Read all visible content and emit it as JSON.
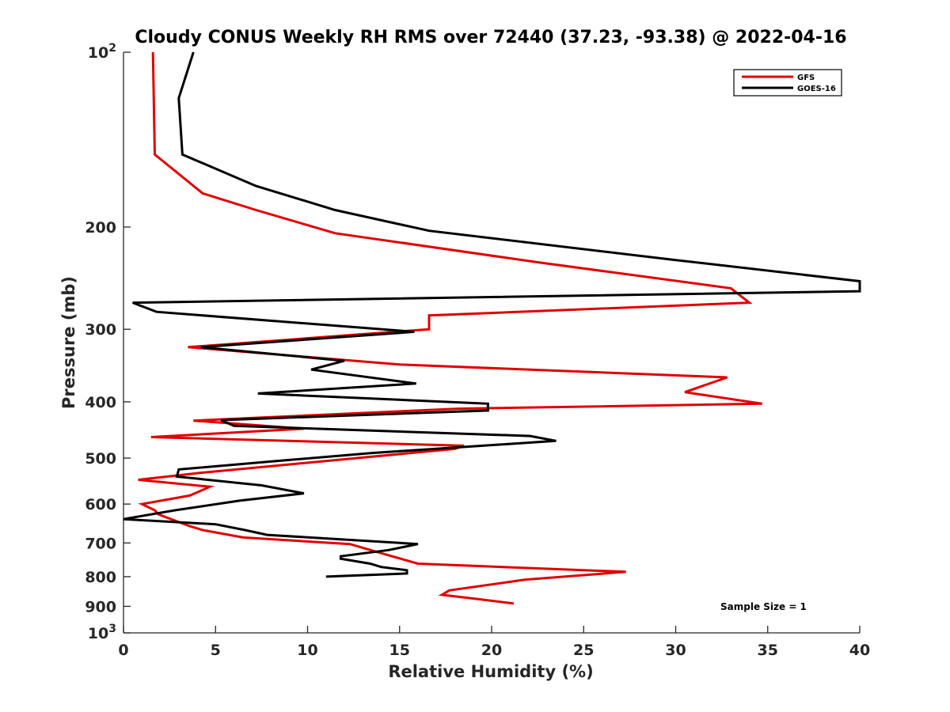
{
  "chart_data": {
    "type": "line",
    "title": "Cloudy CONUS Weekly RH RMS over 72440 (37.23, -93.38) @ 2022-04-16",
    "xlabel": "Relative Humidity (%)",
    "ylabel": "Pressure (mb)",
    "xlim": [
      0,
      40
    ],
    "ylim": [
      100,
      1000
    ],
    "y_scale": "log",
    "y_reversed": true,
    "x_ticks": [
      0,
      5,
      10,
      15,
      20,
      25,
      30,
      35,
      40
    ],
    "y_ticks": [
      {
        "value": 100,
        "label": "10",
        "sup": "2"
      },
      {
        "value": 200,
        "label": "200"
      },
      {
        "value": 300,
        "label": "300"
      },
      {
        "value": 400,
        "label": "400"
      },
      {
        "value": 500,
        "label": "500"
      },
      {
        "value": 600,
        "label": "600"
      },
      {
        "value": 700,
        "label": "700"
      },
      {
        "value": 800,
        "label": "800"
      },
      {
        "value": 900,
        "label": "900"
      },
      {
        "value": 1000,
        "label": "10",
        "sup": "3"
      }
    ],
    "grid": false,
    "legend_position": "top-right",
    "annotation": "Sample Size = 1",
    "series": [
      {
        "name": "GFS",
        "color": "#e00000",
        "points": [
          [
            1.6,
            100
          ],
          [
            1.7,
            150
          ],
          [
            4.3,
            175
          ],
          [
            7.2,
            187
          ],
          [
            11.5,
            205
          ],
          [
            22.5,
            230
          ],
          [
            33.0,
            255
          ],
          [
            34.0,
            270
          ],
          [
            16.6,
            284
          ],
          [
            16.6,
            300
          ],
          [
            3.5,
            322
          ],
          [
            15.0,
            345
          ],
          [
            32.8,
            363
          ],
          [
            30.5,
            385
          ],
          [
            34.7,
            403
          ],
          [
            18.2,
            411
          ],
          [
            3.8,
            431
          ],
          [
            9.8,
            445
          ],
          [
            1.5,
            460
          ],
          [
            18.5,
            476
          ],
          [
            18.0,
            482
          ],
          [
            4.2,
            530
          ],
          [
            0.8,
            545
          ],
          [
            4.7,
            560
          ],
          [
            3.6,
            580
          ],
          [
            1.0,
            600
          ],
          [
            1.7,
            615
          ],
          [
            1.9,
            625
          ],
          [
            3.6,
            655
          ],
          [
            4.3,
            665
          ],
          [
            6.5,
            685
          ],
          [
            12.3,
            703
          ],
          [
            14.2,
            732
          ],
          [
            16.0,
            760
          ],
          [
            27.3,
            785
          ],
          [
            21.8,
            810
          ],
          [
            17.7,
            845
          ],
          [
            17.3,
            860
          ],
          [
            19.3,
            875
          ],
          [
            21.2,
            890
          ]
        ]
      },
      {
        "name": "GOES-16",
        "color": "#000000",
        "points": [
          [
            3.8,
            100
          ],
          [
            3.0,
            120
          ],
          [
            3.2,
            150
          ],
          [
            7.2,
            170
          ],
          [
            11.5,
            187
          ],
          [
            16.6,
            203
          ],
          [
            30.0,
            228
          ],
          [
            40.0,
            248
          ],
          [
            40.0,
            258
          ],
          [
            0.5,
            270
          ],
          [
            1.8,
            280
          ],
          [
            11.0,
            295
          ],
          [
            15.8,
            303
          ],
          [
            4.2,
            322
          ],
          [
            12.0,
            340
          ],
          [
            10.2,
            352
          ],
          [
            15.9,
            372
          ],
          [
            7.3,
            387
          ],
          [
            19.8,
            403
          ],
          [
            19.8,
            414
          ],
          [
            5.3,
            430
          ],
          [
            6.0,
            440
          ],
          [
            22.1,
            458
          ],
          [
            23.5,
            467
          ],
          [
            13.5,
            490
          ],
          [
            8.3,
            506
          ],
          [
            3.0,
            523
          ],
          [
            2.9,
            538
          ],
          [
            7.5,
            557
          ],
          [
            9.8,
            575
          ],
          [
            6.3,
            592
          ],
          [
            2.8,
            615
          ],
          [
            0.0,
            637
          ],
          [
            5.0,
            650
          ],
          [
            6.6,
            665
          ],
          [
            7.8,
            678
          ],
          [
            16.0,
            703
          ],
          [
            14.4,
            720
          ],
          [
            11.8,
            738
          ],
          [
            11.8,
            745
          ],
          [
            13.4,
            760
          ],
          [
            14.0,
            770
          ],
          [
            15.4,
            780
          ],
          [
            15.4,
            790
          ],
          [
            11.0,
            800
          ]
        ]
      }
    ]
  }
}
